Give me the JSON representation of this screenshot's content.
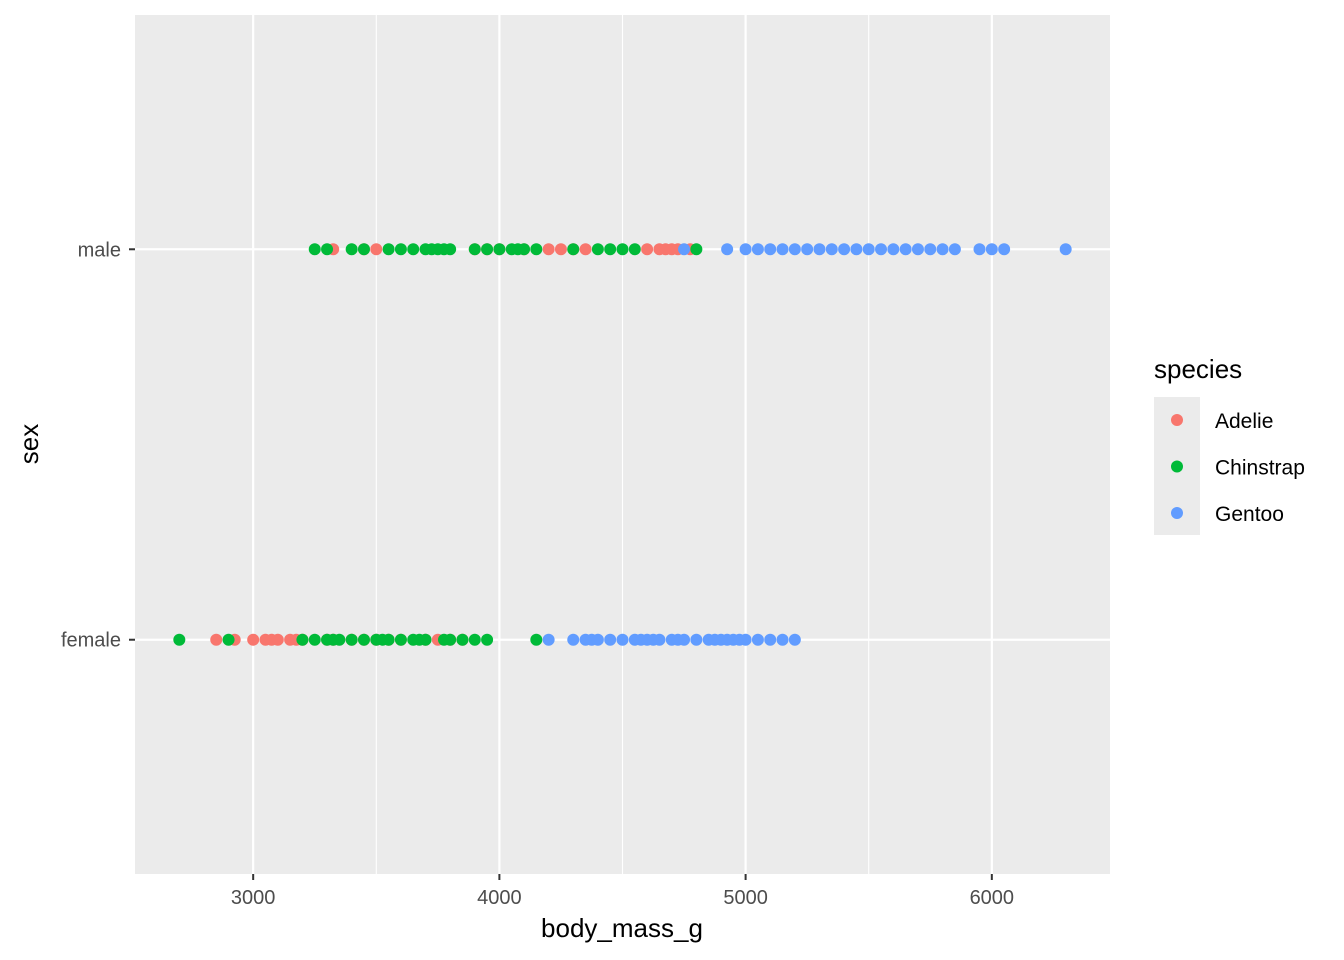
{
  "chart_data": {
    "type": "scatter",
    "xlabel": "body_mass_g",
    "ylabel": "sex",
    "xlim": [
      2520,
      6480
    ],
    "x_ticks": [
      "3000",
      "4000",
      "5000",
      "6000"
    ],
    "categories": [
      "female",
      "male"
    ],
    "grid": true,
    "legend_position": "right",
    "legend_title": "species",
    "series": [
      {
        "name": "Adelie",
        "color": "#F8766D",
        "points": [
          [
            "male",
            3325
          ],
          [
            "male",
            3450
          ],
          [
            "male",
            3500
          ],
          [
            "male",
            3900
          ],
          [
            "male",
            3950
          ],
          [
            "male",
            4000
          ],
          [
            "male",
            4100
          ],
          [
            "male",
            4200
          ],
          [
            "male",
            4250
          ],
          [
            "male",
            4300
          ],
          [
            "male",
            4350
          ],
          [
            "male",
            4600
          ],
          [
            "male",
            4650
          ],
          [
            "male",
            4675
          ],
          [
            "male",
            4700
          ],
          [
            "male",
            4725
          ],
          [
            "male",
            4775
          ],
          [
            "female",
            2850
          ],
          [
            "female",
            2925
          ],
          [
            "female",
            3000
          ],
          [
            "female",
            3050
          ],
          [
            "female",
            3075
          ],
          [
            "female",
            3100
          ],
          [
            "female",
            3150
          ],
          [
            "female",
            3175
          ],
          [
            "female",
            3200
          ],
          [
            "female",
            3300
          ],
          [
            "female",
            3325
          ],
          [
            "female",
            3400
          ],
          [
            "female",
            3450
          ],
          [
            "female",
            3500
          ],
          [
            "female",
            3550
          ],
          [
            "female",
            3600
          ],
          [
            "female",
            3700
          ],
          [
            "female",
            3750
          ],
          [
            "female",
            3800
          ],
          [
            "female",
            3850
          ]
        ]
      },
      {
        "name": "Chinstrap",
        "color": "#00BA38",
        "points": [
          [
            "male",
            3250
          ],
          [
            "male",
            3300
          ],
          [
            "male",
            3400
          ],
          [
            "male",
            3450
          ],
          [
            "male",
            3550
          ],
          [
            "male",
            3600
          ],
          [
            "male",
            3650
          ],
          [
            "male",
            3700
          ],
          [
            "male",
            3725
          ],
          [
            "male",
            3750
          ],
          [
            "male",
            3775
          ],
          [
            "male",
            3800
          ],
          [
            "male",
            3900
          ],
          [
            "male",
            3950
          ],
          [
            "male",
            4000
          ],
          [
            "male",
            4050
          ],
          [
            "male",
            4075
          ],
          [
            "male",
            4100
          ],
          [
            "male",
            4150
          ],
          [
            "male",
            4300
          ],
          [
            "male",
            4400
          ],
          [
            "male",
            4450
          ],
          [
            "male",
            4500
          ],
          [
            "male",
            4550
          ],
          [
            "male",
            4800
          ],
          [
            "female",
            2700
          ],
          [
            "female",
            2900
          ],
          [
            "female",
            3200
          ],
          [
            "female",
            3250
          ],
          [
            "female",
            3300
          ],
          [
            "female",
            3325
          ],
          [
            "female",
            3350
          ],
          [
            "female",
            3400
          ],
          [
            "female",
            3450
          ],
          [
            "female",
            3500
          ],
          [
            "female",
            3525
          ],
          [
            "female",
            3550
          ],
          [
            "female",
            3600
          ],
          [
            "female",
            3650
          ],
          [
            "female",
            3675
          ],
          [
            "female",
            3700
          ],
          [
            "female",
            3775
          ],
          [
            "female",
            3800
          ],
          [
            "female",
            3850
          ],
          [
            "female",
            3900
          ],
          [
            "female",
            3950
          ],
          [
            "female",
            4150
          ]
        ]
      },
      {
        "name": "Gentoo",
        "color": "#619CFF",
        "points": [
          [
            "male",
            4750
          ],
          [
            "male",
            4925
          ],
          [
            "male",
            5000
          ],
          [
            "male",
            5050
          ],
          [
            "male",
            5100
          ],
          [
            "male",
            5150
          ],
          [
            "male",
            5200
          ],
          [
            "male",
            5250
          ],
          [
            "male",
            5300
          ],
          [
            "male",
            5350
          ],
          [
            "male",
            5400
          ],
          [
            "male",
            5450
          ],
          [
            "male",
            5500
          ],
          [
            "male",
            5550
          ],
          [
            "male",
            5600
          ],
          [
            "male",
            5650
          ],
          [
            "male",
            5700
          ],
          [
            "male",
            5750
          ],
          [
            "male",
            5800
          ],
          [
            "male",
            5850
          ],
          [
            "male",
            5950
          ],
          [
            "male",
            6000
          ],
          [
            "male",
            6050
          ],
          [
            "male",
            6300
          ],
          [
            "female",
            4200
          ],
          [
            "female",
            4300
          ],
          [
            "female",
            4350
          ],
          [
            "female",
            4375
          ],
          [
            "female",
            4400
          ],
          [
            "female",
            4450
          ],
          [
            "female",
            4500
          ],
          [
            "female",
            4550
          ],
          [
            "female",
            4575
          ],
          [
            "female",
            4600
          ],
          [
            "female",
            4625
          ],
          [
            "female",
            4650
          ],
          [
            "female",
            4700
          ],
          [
            "female",
            4725
          ],
          [
            "female",
            4750
          ],
          [
            "female",
            4800
          ],
          [
            "female",
            4850
          ],
          [
            "female",
            4875
          ],
          [
            "female",
            4900
          ],
          [
            "female",
            4925
          ],
          [
            "female",
            4950
          ],
          [
            "female",
            4975
          ],
          [
            "female",
            5000
          ],
          [
            "female",
            5050
          ],
          [
            "female",
            5100
          ],
          [
            "female",
            5150
          ],
          [
            "female",
            5200
          ]
        ]
      }
    ]
  }
}
